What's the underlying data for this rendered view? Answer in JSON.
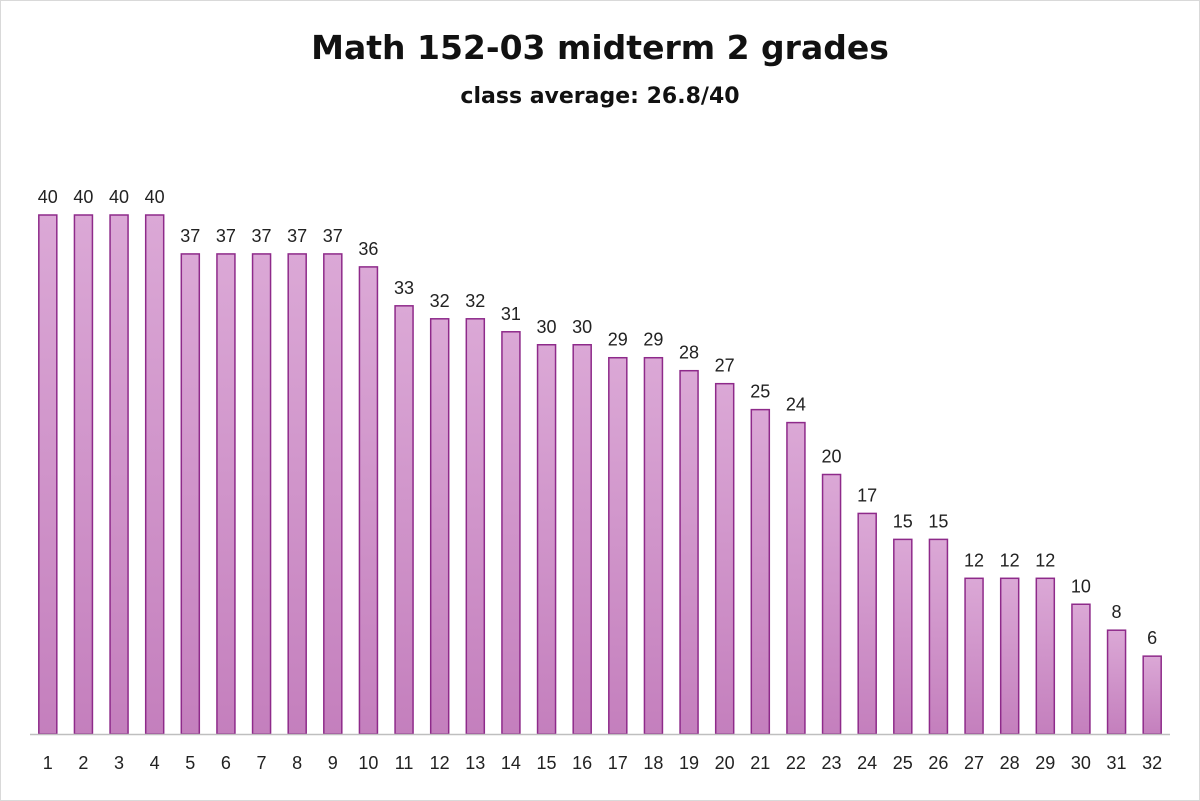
{
  "chart_data": {
    "type": "bar",
    "title": "Math 152-03 midterm 2 grades",
    "subtitle": "class average: 26.8/40",
    "xlabel": "",
    "ylabel": "",
    "categories": [
      "1",
      "2",
      "3",
      "4",
      "5",
      "6",
      "7",
      "8",
      "9",
      "10",
      "11",
      "12",
      "13",
      "14",
      "15",
      "16",
      "17",
      "18",
      "19",
      "20",
      "21",
      "22",
      "23",
      "24",
      "25",
      "26",
      "27",
      "28",
      "29",
      "30",
      "31",
      "32"
    ],
    "values": [
      40,
      40,
      40,
      40,
      37,
      37,
      37,
      37,
      37,
      36,
      33,
      32,
      32,
      31,
      30,
      30,
      29,
      29,
      28,
      27,
      25,
      24,
      20,
      17,
      15,
      15,
      12,
      12,
      12,
      10,
      8,
      6
    ],
    "ylim": [
      0,
      40
    ],
    "grid": false,
    "legend": "none",
    "data_labels": true,
    "colors": {
      "bar_fill_top": "#dba8d6",
      "bar_fill_bottom": "#c47fbd",
      "bar_stroke": "#8e2a8a",
      "axis": "#bfbfbf"
    }
  }
}
